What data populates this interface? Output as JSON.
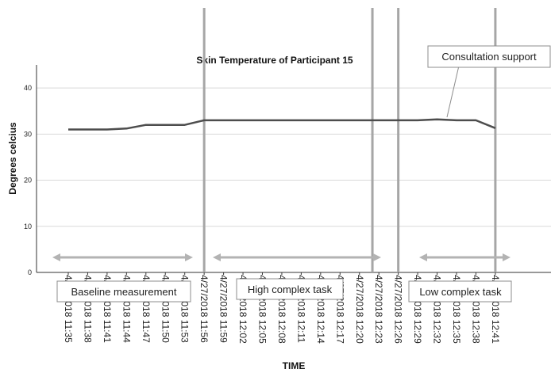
{
  "chart_data": {
    "type": "line",
    "title": "Skin Temperature of Participant 15",
    "xlabel": "TIME",
    "ylabel": "Degrees celcius",
    "ylim": [
      0,
      45
    ],
    "yticks": [
      0,
      10,
      20,
      30,
      40
    ],
    "grid": true,
    "x": [
      "4/27/2018 11:35",
      "4/27/2018 11:38",
      "4/27/2018 11:41",
      "4/27/2018 11:44",
      "4/27/2018 11:47",
      "4/27/2018 11:50",
      "4/27/2018 11:53",
      "4/27/2018 11:56",
      "4/27/2018 11:59",
      "4/27/2018 12:02",
      "4/27/2018 12:05",
      "4/27/2018 12:08",
      "4/27/2018 12:11",
      "4/27/2018 12:14",
      "4/27/2018 12:17",
      "4/27/2018 12:20",
      "4/27/2018 12:23",
      "4/27/2018 12:26",
      "4/27/2018 12:29",
      "4/27/2018 12:32",
      "4/27/2018 12:35",
      "4/27/2018 12:38",
      "4/27/2018 12:41"
    ],
    "series": [
      {
        "values": [
          31.0,
          31.0,
          31.0,
          31.2,
          32.0,
          32.0,
          32.0,
          33.0,
          33.0,
          33.0,
          33.0,
          33.0,
          33.0,
          33.0,
          33.0,
          33.0,
          33.0,
          33.0,
          33.0,
          33.2,
          33.0,
          33.0,
          31.3
        ]
      }
    ],
    "vertical_lines": [
      "4/27/2018 11:56",
      "4/27/2018 12:22",
      "4/27/2018 12:26",
      "4/27/2018 12:41"
    ],
    "annotations": {
      "baseline": "Baseline measurement",
      "high": "High complex task",
      "low": "Low complex task",
      "consultation": "Consultation support"
    },
    "colors": {
      "line": "#4d4d4d",
      "vline": "#a6a6a6",
      "arrow": "#b3b3b3",
      "grid": "#d9d9d9",
      "box_border": "#8c8c8c"
    }
  }
}
